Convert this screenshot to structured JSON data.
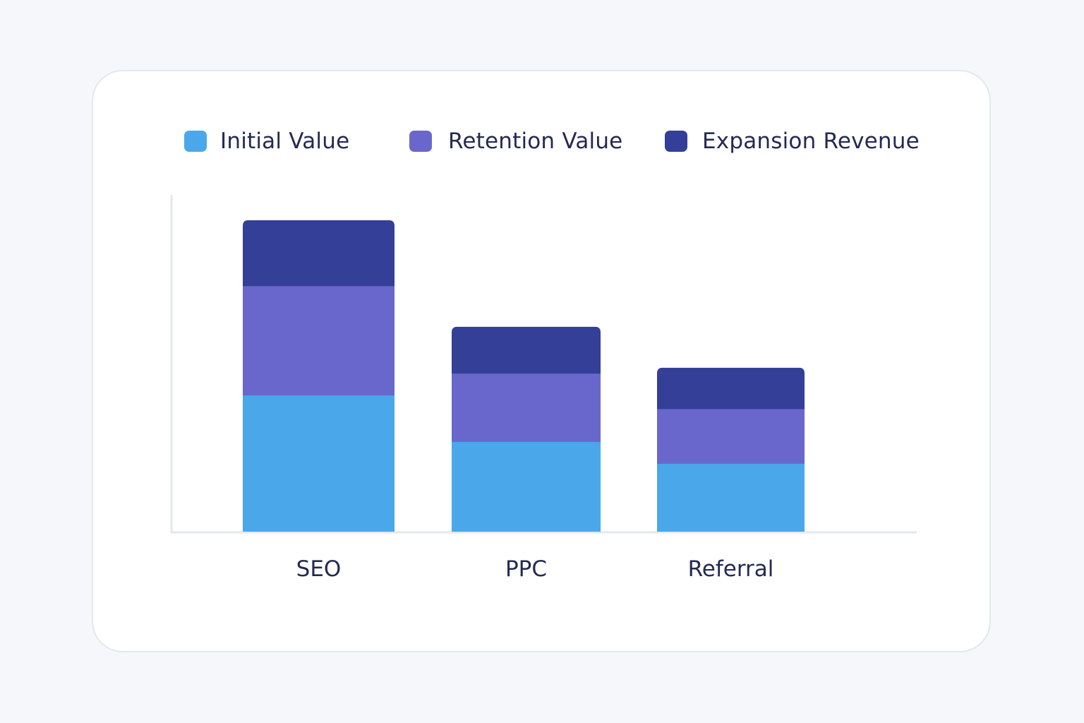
{
  "chart_data": {
    "type": "bar",
    "stacked": true,
    "title": "",
    "xlabel": "",
    "ylabel": "",
    "ylim": [
      0,
      12
    ],
    "grid": false,
    "legend_position": "top",
    "categories": [
      "SEO",
      "PPC",
      "Referral"
    ],
    "series": [
      {
        "name": "Initial Value",
        "color": "#4aa8ea",
        "values": [
          5.0,
          3.3,
          2.5
        ]
      },
      {
        "name": "Retention Value",
        "color": "#6967cc",
        "values": [
          4.0,
          2.5,
          2.0
        ]
      },
      {
        "name": "Expansion Revenue",
        "color": "#343f98",
        "values": [
          2.4,
          1.7,
          1.5
        ]
      }
    ]
  }
}
